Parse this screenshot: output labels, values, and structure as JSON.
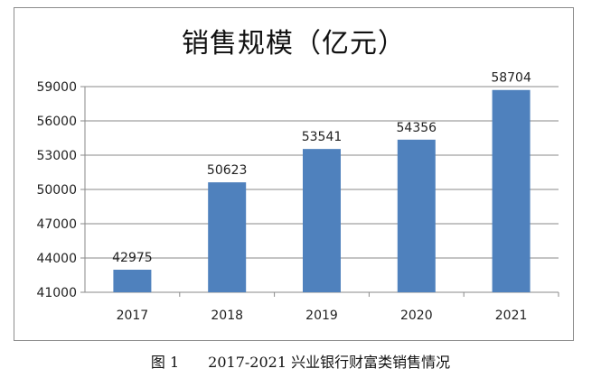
{
  "chart_data": {
    "type": "bar",
    "title": "销售规模（亿元）",
    "categories": [
      "2017",
      "2018",
      "2019",
      "2020",
      "2021"
    ],
    "values": [
      42975,
      50623,
      53541,
      54356,
      58704
    ],
    "data_labels": [
      "42975",
      "50623",
      "53541",
      "54356",
      "58704"
    ],
    "ylim": [
      41000,
      59000
    ],
    "yticks": [
      41000,
      44000,
      47000,
      50000,
      53000,
      56000,
      59000
    ],
    "ytick_labels": [
      "41000",
      "44000",
      "47000",
      "50000",
      "53000",
      "56000",
      "59000"
    ],
    "xlabel": "",
    "ylabel": "",
    "grid": true,
    "legend": "none",
    "bar_color": "#4f81bd"
  },
  "caption": {
    "number": "图 1",
    "text": "2017-2021 兴业银行财富类销售情况"
  }
}
